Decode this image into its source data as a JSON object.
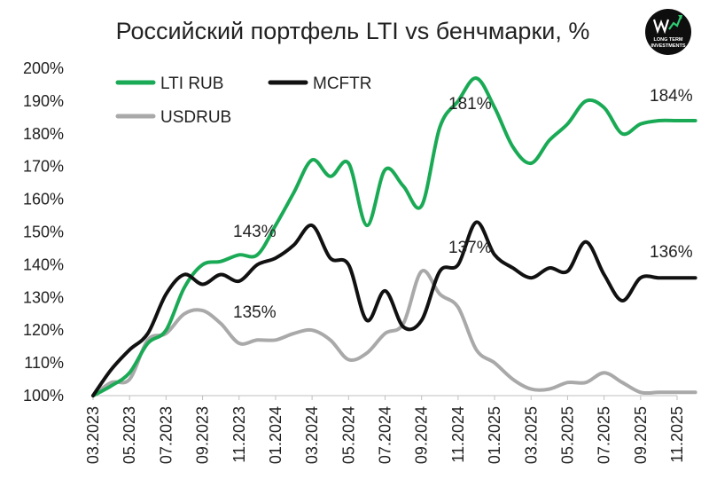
{
  "chart_data": {
    "type": "line",
    "title": "Российский портфель LTI vs бенчмарки, %",
    "xlabel": "",
    "ylabel": "",
    "y_ticks": [
      "100%",
      "110%",
      "120%",
      "130%",
      "140%",
      "150%",
      "160%",
      "170%",
      "180%",
      "190%",
      "200%"
    ],
    "ylim": [
      100,
      200
    ],
    "x_ticks": [
      "03.2023",
      "05.2023",
      "07.2023",
      "09.2023",
      "11.2023",
      "01.2024",
      "03.2024",
      "05.2024",
      "07.2024",
      "09.2024",
      "11.2024",
      "01.2025",
      "03.2025",
      "05.2025",
      "07.2025",
      "09.2025",
      "11.2025"
    ],
    "x_start": "03.2023",
    "x_end": "11.2025",
    "grid": false,
    "legend_position": "top-left",
    "series": [
      {
        "name": "LTI RUB",
        "color": "#1aaa55",
        "x": [
          0,
          0.5,
          1,
          1.5,
          2,
          2.5,
          3,
          3.5,
          4,
          4.5,
          5,
          5.5,
          6,
          6.5,
          7,
          7.5,
          8,
          8.5,
          9,
          9.5,
          10,
          10.5,
          11,
          11.5,
          12,
          12.5,
          13,
          13.5,
          14,
          14.5,
          15,
          15.5,
          16,
          16.5
        ],
        "values": [
          100,
          103,
          107,
          116,
          120,
          133,
          140,
          141,
          143,
          143,
          152,
          162,
          172,
          167,
          171,
          152,
          169,
          164,
          158,
          182,
          190,
          197,
          188,
          176,
          171,
          178,
          183,
          190,
          188,
          180,
          183,
          184,
          184,
          184
        ]
      },
      {
        "name": "MCFTR",
        "color": "#111111",
        "x": [
          0,
          0.5,
          1,
          1.5,
          2,
          2.5,
          3,
          3.5,
          4,
          4.5,
          5,
          5.5,
          6,
          6.5,
          7,
          7.5,
          8,
          8.5,
          9,
          9.5,
          10,
          10.5,
          11,
          11.5,
          12,
          12.5,
          13,
          13.5,
          14,
          14.5,
          15,
          15.5,
          16,
          16.5
        ],
        "values": [
          100,
          108,
          114,
          119,
          131,
          137,
          134,
          137,
          135,
          140,
          142,
          146,
          152,
          142,
          140,
          123,
          132,
          121,
          123,
          138,
          140,
          153,
          143,
          139,
          136,
          139,
          138,
          147,
          137,
          129,
          136,
          136,
          136,
          136
        ]
      },
      {
        "name": "USDRUB",
        "color": "#a9a9a9",
        "x": [
          0,
          0.5,
          1,
          1.5,
          2,
          2.5,
          3,
          3.5,
          4,
          4.5,
          5,
          5.5,
          6,
          6.5,
          7,
          7.5,
          8,
          8.5,
          9,
          9.5,
          10,
          10.5,
          11,
          11.5,
          12,
          12.5,
          13,
          13.5,
          14,
          14.5,
          15,
          15.5,
          16,
          16.5
        ],
        "values": [
          100,
          104,
          105,
          117,
          119,
          125,
          126,
          122,
          116,
          117,
          117,
          119,
          120,
          117,
          111,
          113,
          119,
          122,
          138,
          131,
          127,
          114,
          110,
          105,
          102,
          102,
          104,
          104,
          107,
          104,
          101,
          101,
          101,
          101
        ]
      }
    ],
    "annotations": [
      "143%",
      "135%",
      "181%",
      "137%",
      "184%",
      "136%"
    ]
  },
  "logo": {
    "text_line1": "LONG TERM",
    "text_line2": "INVESTMENTS"
  }
}
